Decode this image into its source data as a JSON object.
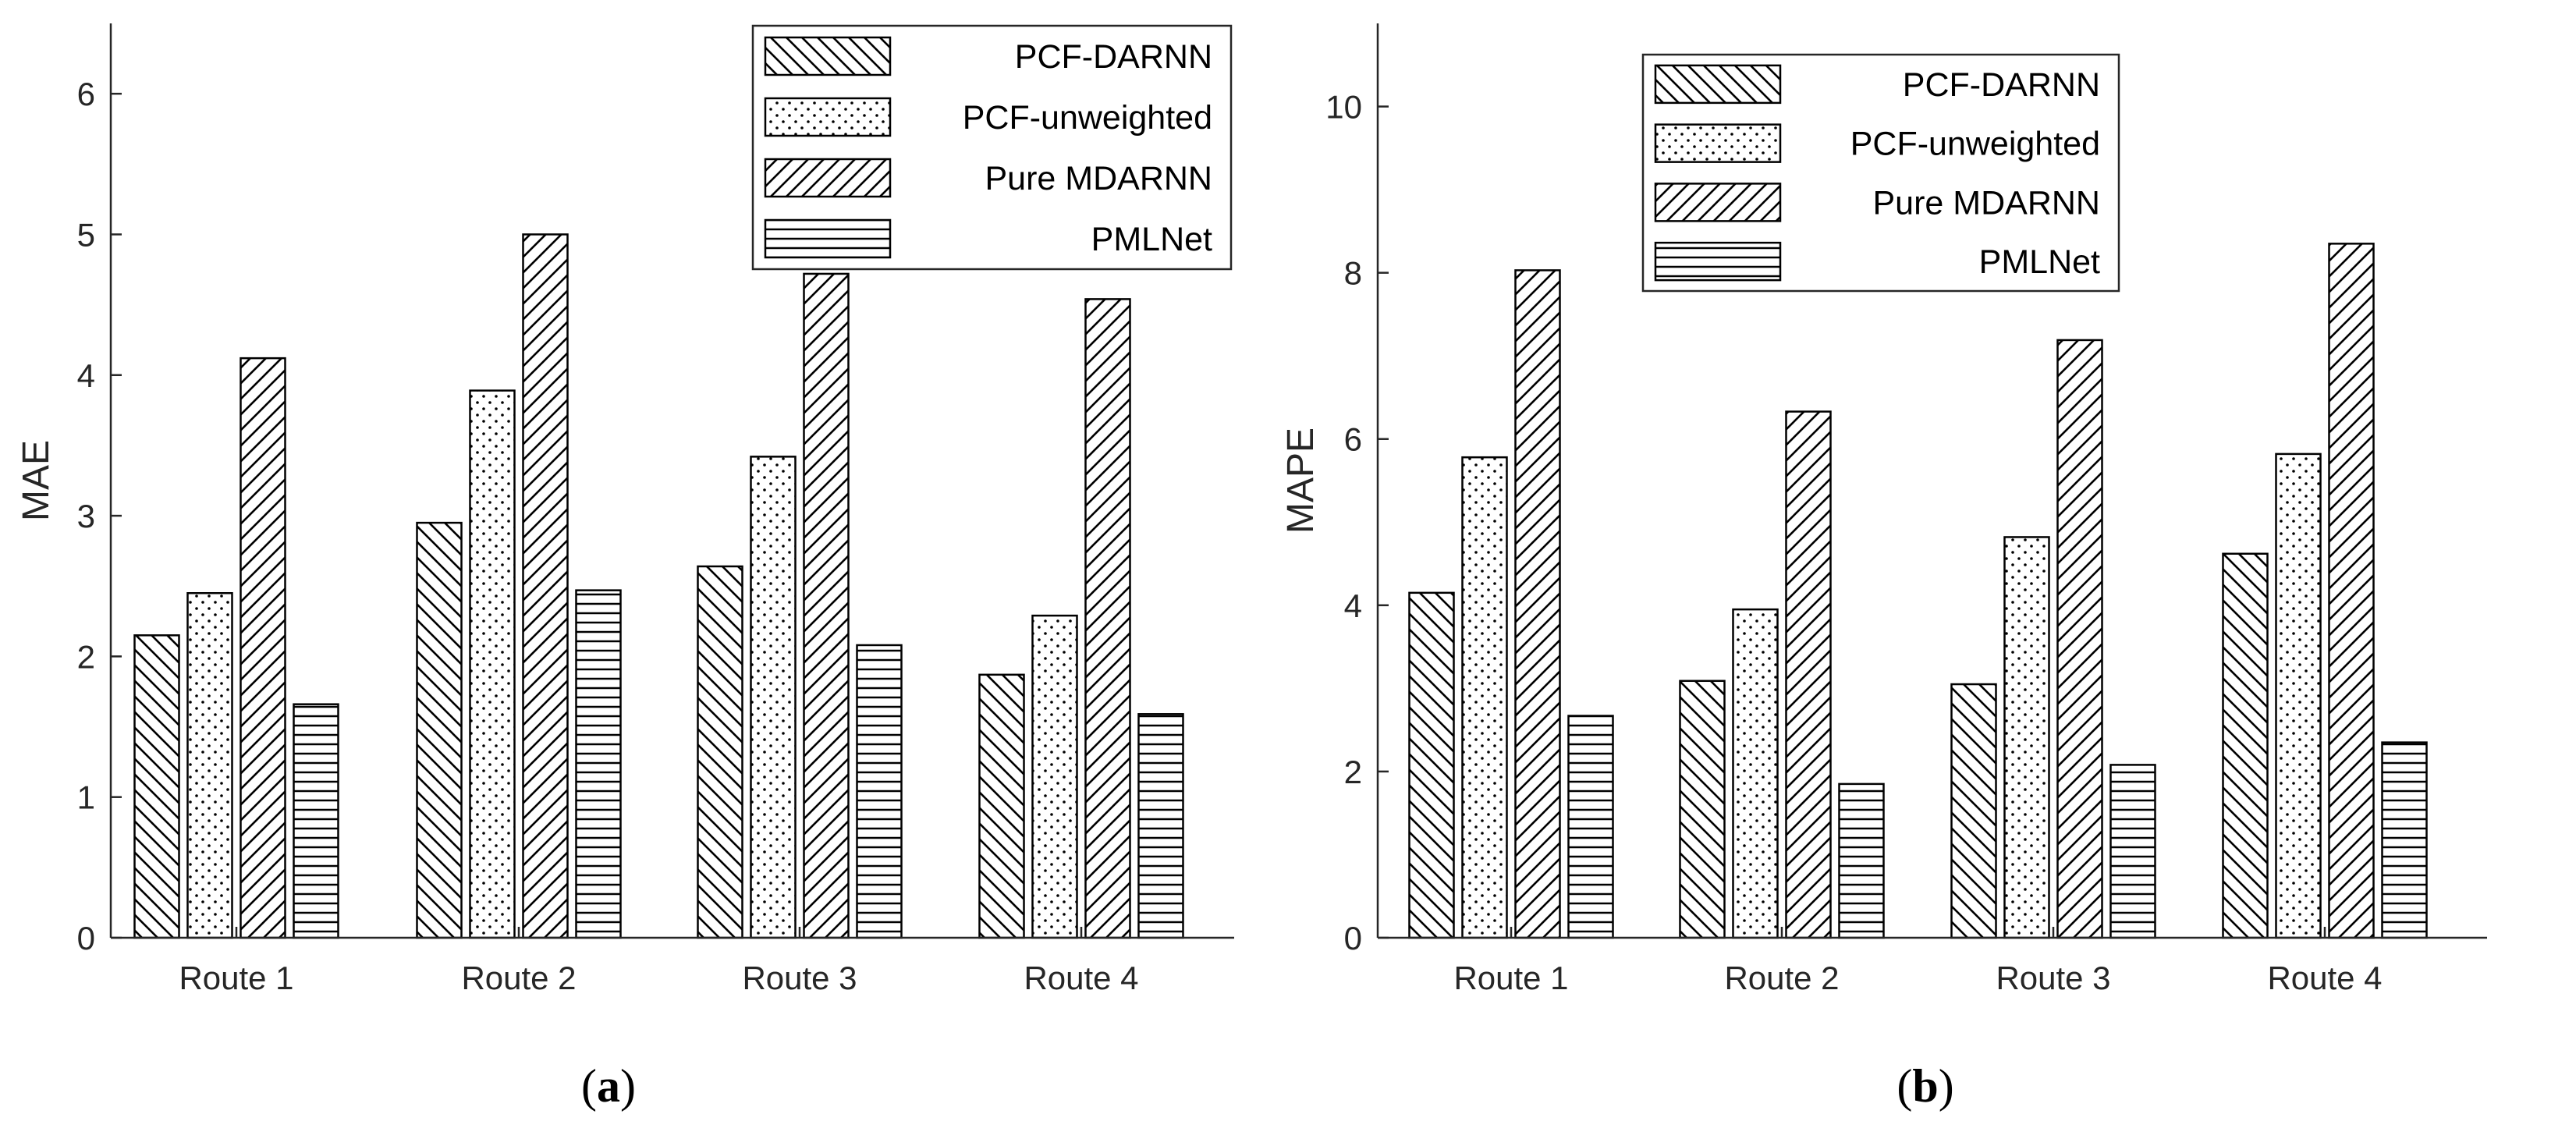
{
  "chart_data": [
    {
      "type": "bar",
      "panel_label": "a",
      "ylabel": "MAE",
      "ylim": [
        0,
        6.5
      ],
      "yticks": [
        0,
        1,
        2,
        3,
        4,
        5,
        6
      ],
      "grid": false,
      "legend_position": "top-right",
      "categories": [
        "Route 1",
        "Route 2",
        "Route 3",
        "Route 4"
      ],
      "series": [
        {
          "name": "PCF-DARNN",
          "pattern": "diag-down",
          "values": [
            2.15,
            2.95,
            2.64,
            1.87
          ]
        },
        {
          "name": "PCF-unweighted",
          "pattern": "dots",
          "values": [
            2.45,
            3.89,
            3.42,
            2.29
          ]
        },
        {
          "name": "Pure MDARNN",
          "pattern": "diag-up",
          "values": [
            4.12,
            5.0,
            4.72,
            4.54
          ]
        },
        {
          "name": "PMLNet",
          "pattern": "horizontal",
          "values": [
            1.66,
            2.47,
            2.08,
            1.59
          ]
        }
      ]
    },
    {
      "type": "bar",
      "panel_label": "b",
      "ylabel": "MAPE",
      "ylim": [
        0,
        11
      ],
      "yticks": [
        0,
        2,
        4,
        6,
        8,
        10
      ],
      "grid": false,
      "legend_position": "top-right",
      "categories": [
        "Route 1",
        "Route 2",
        "Route 3",
        "Route 4"
      ],
      "series": [
        {
          "name": "PCF-DARNN",
          "pattern": "diag-down",
          "values": [
            4.15,
            3.09,
            3.05,
            4.62
          ]
        },
        {
          "name": "PCF-unweighted",
          "pattern": "dots",
          "values": [
            5.78,
            3.95,
            4.82,
            5.82
          ]
        },
        {
          "name": "Pure MDARNN",
          "pattern": "diag-up",
          "values": [
            8.03,
            6.33,
            7.19,
            8.35
          ]
        },
        {
          "name": "PMLNet",
          "pattern": "horizontal",
          "values": [
            2.67,
            1.85,
            2.08,
            2.35
          ]
        }
      ]
    }
  ]
}
